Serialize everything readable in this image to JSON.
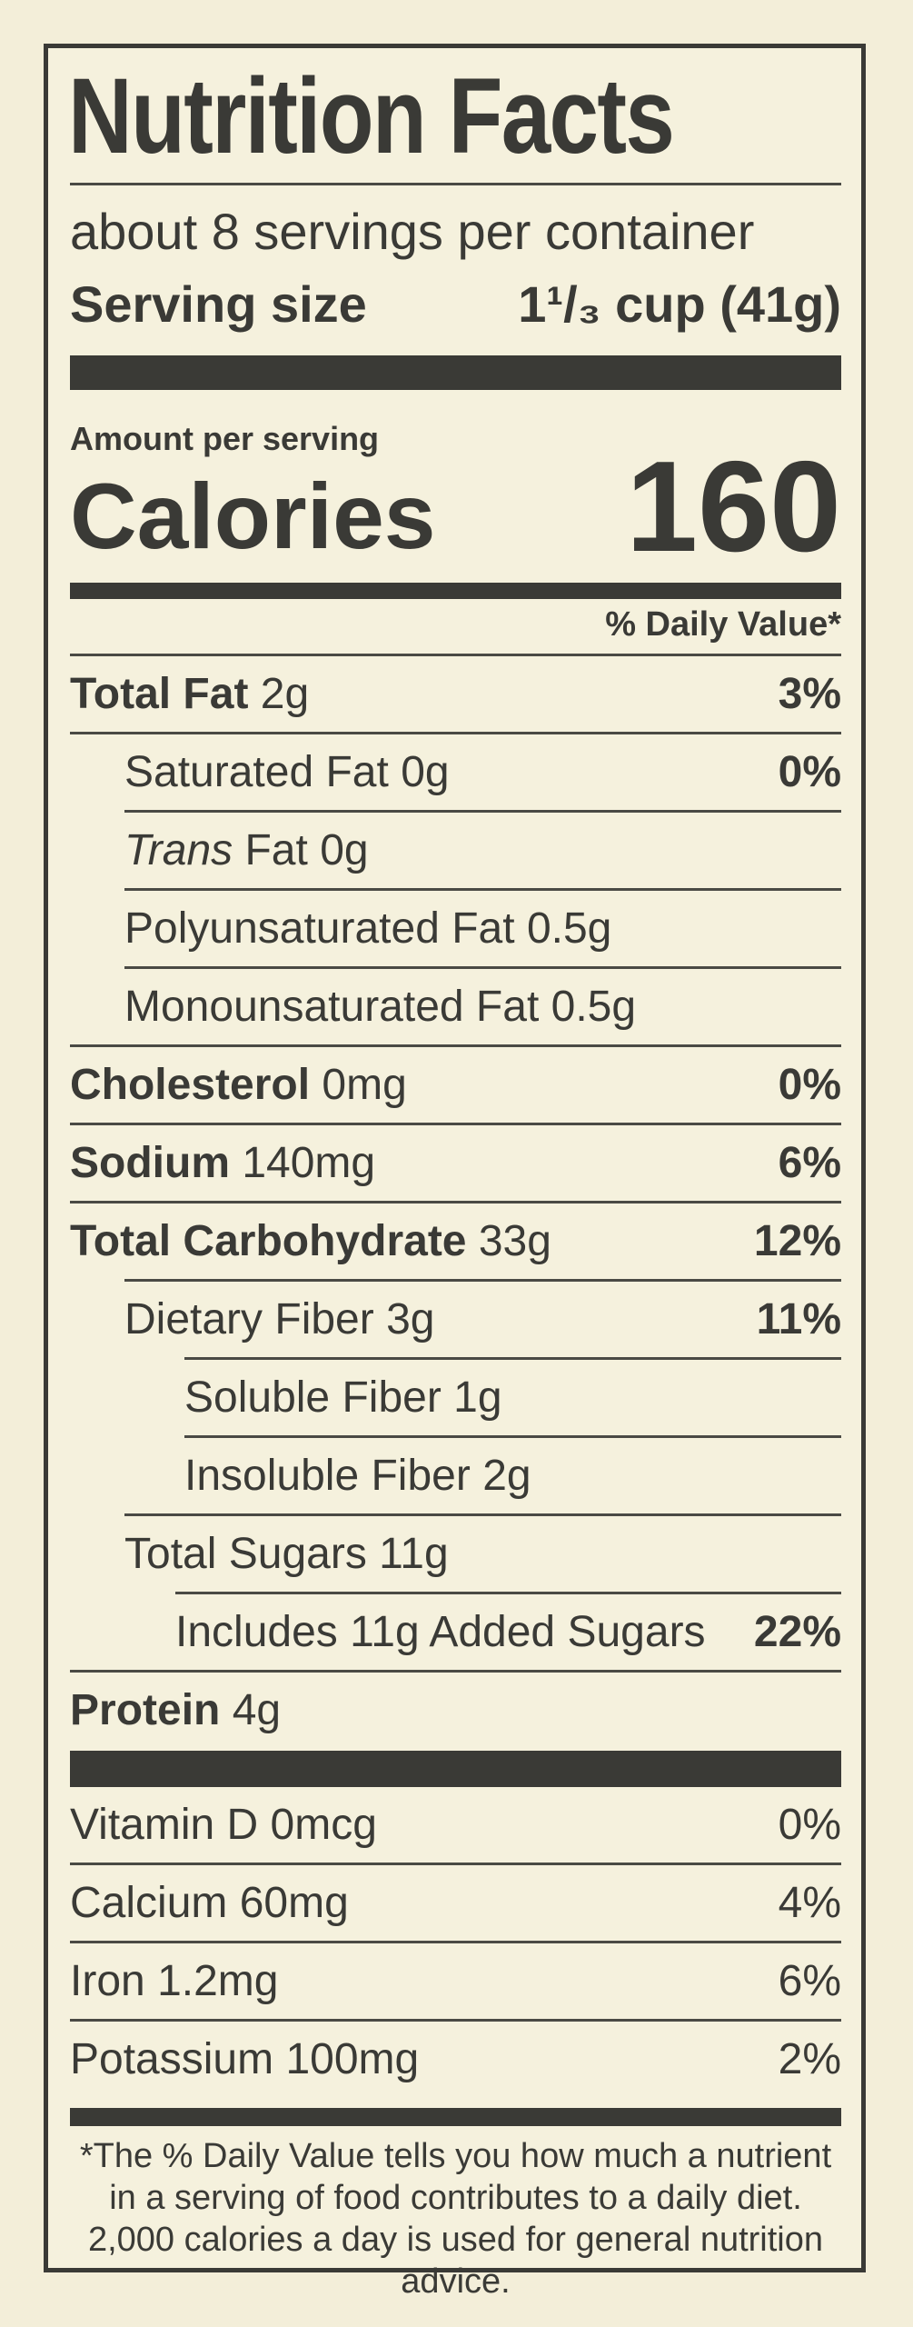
{
  "label": {
    "title": "Nutrition Facts",
    "servings_per_container": "about 8 servings per container",
    "serving_size_label": "Serving size",
    "serving_size_value": "1¹/₃ cup (41g)",
    "amount_per_serving": "Amount per serving",
    "calories_label": "Calories",
    "calories_value": "160",
    "daily_value_header": "% Daily Value*",
    "nutrients": [
      {
        "name": "Total Fat",
        "amount": "2g",
        "dv": "3%"
      },
      {
        "name": "Saturated Fat",
        "amount": "0g",
        "dv": "0%"
      },
      {
        "name_italic": "Trans",
        "name": "Fat",
        "amount": "0g",
        "dv": ""
      },
      {
        "name": "Polyunsaturated Fat",
        "amount": "0.5g",
        "dv": ""
      },
      {
        "name": "Monounsaturated Fat",
        "amount": "0.5g",
        "dv": ""
      },
      {
        "name": "Cholesterol",
        "amount": "0mg",
        "dv": "0%"
      },
      {
        "name": "Sodium",
        "amount": "140mg",
        "dv": "6%"
      },
      {
        "name": "Total Carbohydrate",
        "amount": "33g",
        "dv": "12%"
      },
      {
        "name": "Dietary Fiber",
        "amount": "3g",
        "dv": "11%"
      },
      {
        "name": "Soluble Fiber",
        "amount": "1g",
        "dv": ""
      },
      {
        "name": "Insoluble Fiber",
        "amount": "2g",
        "dv": ""
      },
      {
        "name": "Total Sugars",
        "amount": "11g",
        "dv": ""
      },
      {
        "name": "Includes 11g Added Sugars",
        "amount": "",
        "dv": "22%"
      },
      {
        "name": "Protein",
        "amount": "4g",
        "dv": ""
      }
    ],
    "vitamins": [
      {
        "name": "Vitamin D",
        "amount": "0mcg",
        "dv": "0%"
      },
      {
        "name": "Calcium",
        "amount": "60mg",
        "dv": "4%"
      },
      {
        "name": "Iron",
        "amount": "1.2mg",
        "dv": "6%"
      },
      {
        "name": "Potassium",
        "amount": "100mg",
        "dv": "2%"
      }
    ],
    "footnote": "*The % Daily Value tells you how much a nutrient in a serving of food contributes to a daily diet. 2,000 calories a day is used for general nutrition advice."
  }
}
